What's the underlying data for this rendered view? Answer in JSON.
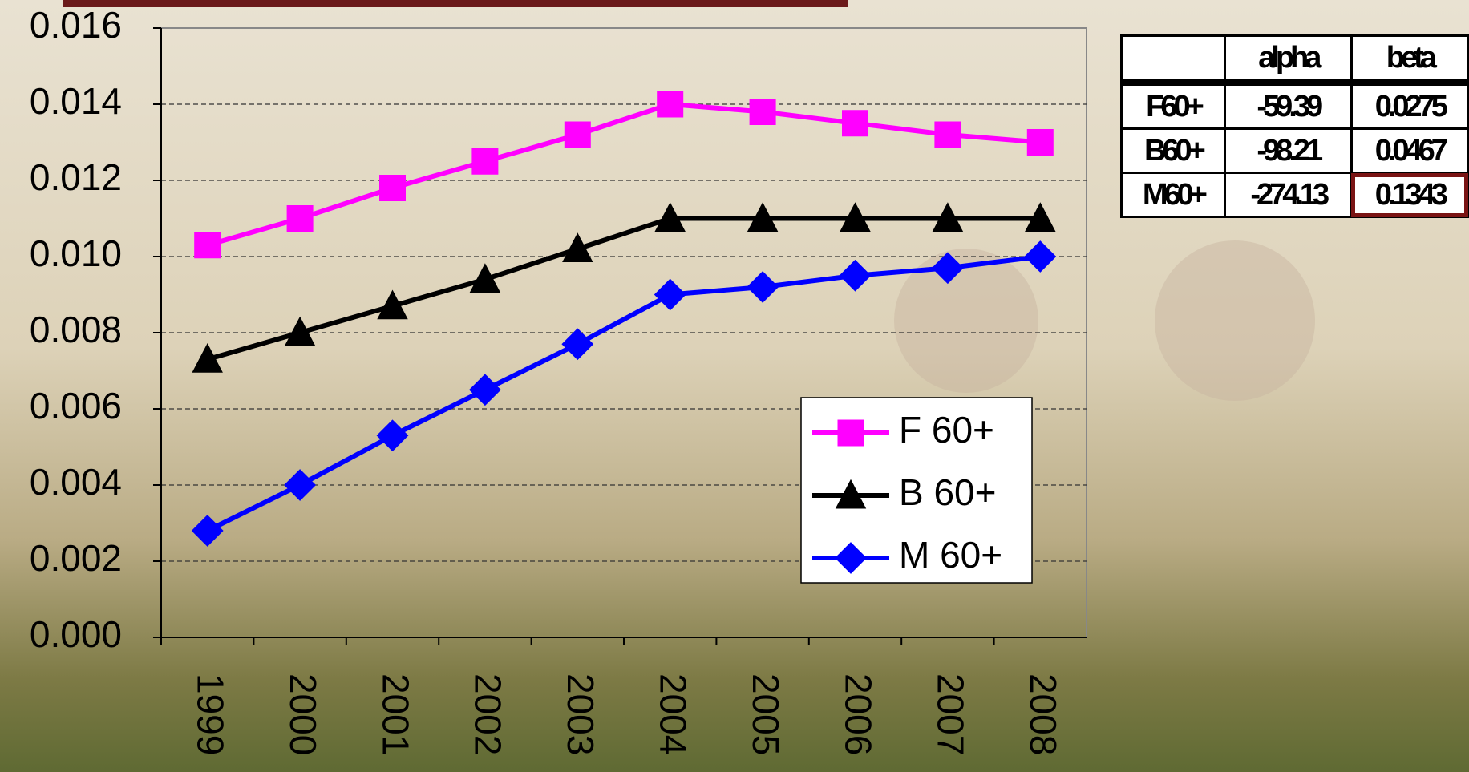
{
  "chart_data": {
    "type": "line",
    "categories": [
      "1999",
      "2000",
      "2001",
      "2002",
      "2003",
      "2004",
      "2005",
      "2006",
      "2007",
      "2008"
    ],
    "series": [
      {
        "name": "F 60+",
        "color": "#ff00ff",
        "marker": "square",
        "values": [
          0.0103,
          0.011,
          0.0118,
          0.0125,
          0.0132,
          0.014,
          0.0138,
          0.0135,
          0.0132,
          0.013
        ]
      },
      {
        "name": "B 60+",
        "color": "#000000",
        "marker": "triangle",
        "values": [
          0.0073,
          0.008,
          0.0087,
          0.0094,
          0.0102,
          0.011,
          0.011,
          0.011,
          0.011,
          0.011
        ]
      },
      {
        "name": "M 60+",
        "color": "#0000ff",
        "marker": "diamond",
        "values": [
          0.0028,
          0.004,
          0.0053,
          0.0065,
          0.0077,
          0.009,
          0.0092,
          0.0095,
          0.0097,
          0.01
        ]
      }
    ],
    "ylim": [
      0,
      0.016
    ],
    "yticks": [
      {
        "value": 0,
        "label": "0.000"
      },
      {
        "value": 0.002,
        "label": "0.002"
      },
      {
        "value": 0.004,
        "label": "0.004"
      },
      {
        "value": 0.006,
        "label": "0.006"
      },
      {
        "value": 0.008,
        "label": "0.008"
      },
      {
        "value": 0.01,
        "label": "0.010"
      },
      {
        "value": 0.012,
        "label": "0.012"
      },
      {
        "value": 0.014,
        "label": "0.014"
      },
      {
        "value": 0.016,
        "label": "0.016"
      }
    ],
    "grid": true,
    "legend_position": "lower right"
  },
  "table": {
    "header": [
      "alpha",
      "beta"
    ],
    "rows": [
      [
        "F60+",
        "-59.39",
        "0.0275"
      ],
      [
        "B60+",
        "-98.21",
        "0.0467"
      ],
      [
        "M60+",
        "-274.13",
        "0.1343"
      ]
    ]
  }
}
